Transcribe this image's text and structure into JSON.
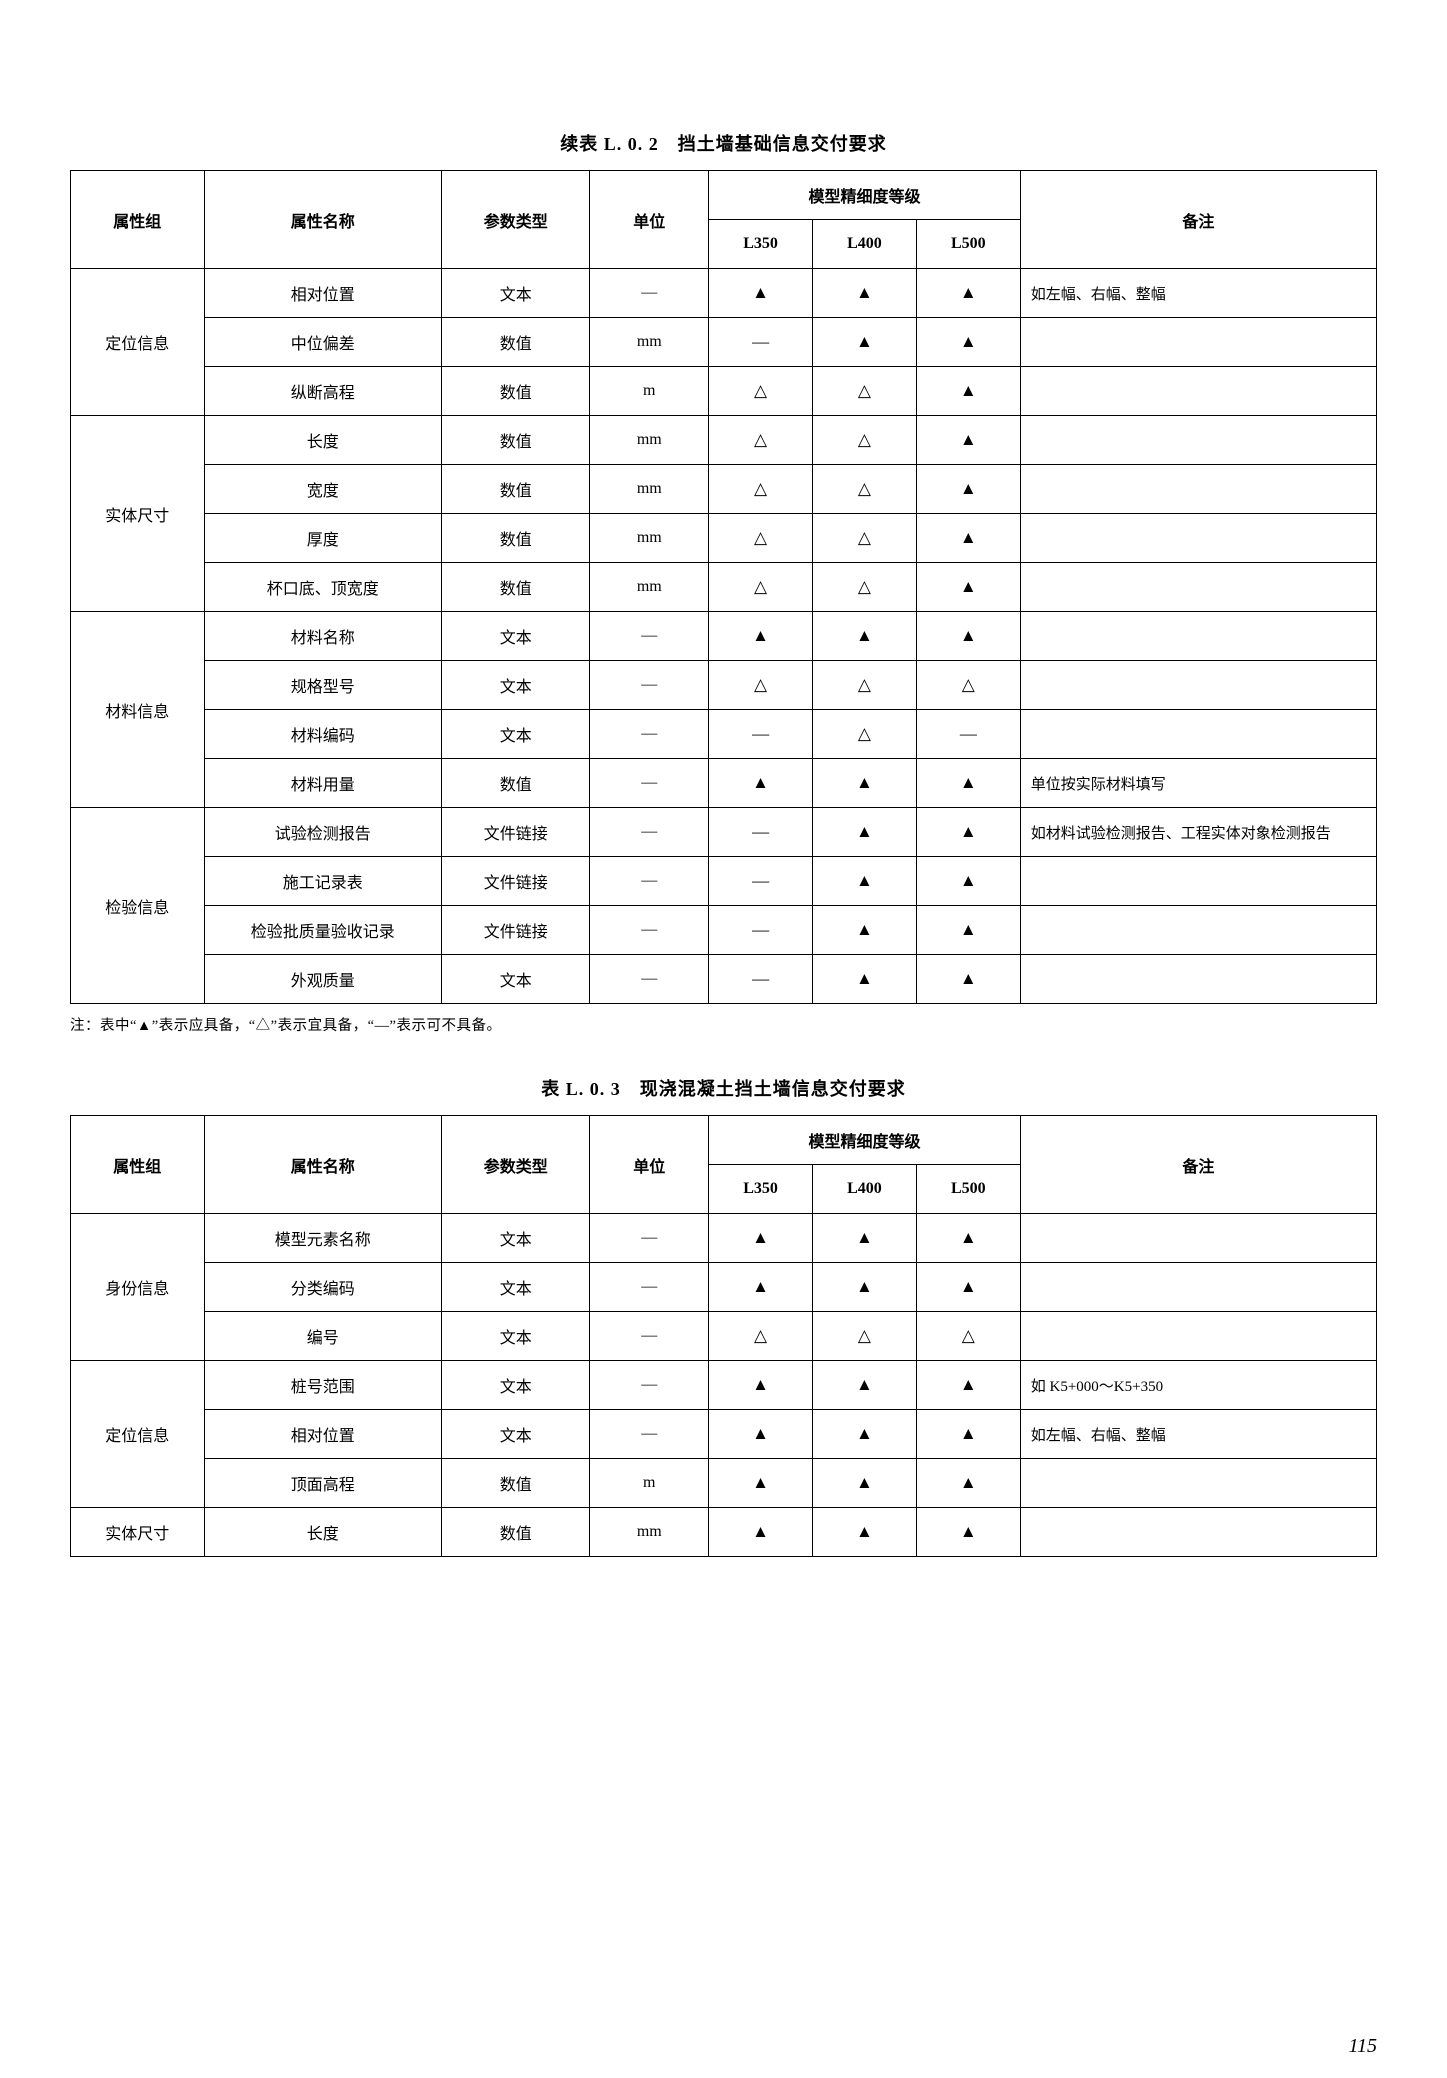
{
  "page_number": "115",
  "symbols": {
    "filled": "▲",
    "hollow": "△",
    "dash": "—"
  },
  "footnote": "注：表中“▲”表示应具备，“△”表示宜具备，“—”表示可不具备。",
  "table1": {
    "title": "续表 L. 0. 2　挡土墙基础信息交付要求",
    "headers": {
      "group": "属性组",
      "attr": "属性名称",
      "type": "参数类型",
      "unit": "单位",
      "level_group": "模型精细度等级",
      "l350": "L350",
      "l400": "L400",
      "l500": "L500",
      "note": "备注"
    },
    "groups": [
      {
        "name": "定位信息",
        "rows": [
          {
            "attr": "相对位置",
            "type": "文本",
            "unit": "—",
            "l350": "▲",
            "l400": "▲",
            "l500": "▲",
            "note": "如左幅、右幅、整幅"
          },
          {
            "attr": "中位偏差",
            "type": "数值",
            "unit": "mm",
            "l350": "—",
            "l400": "▲",
            "l500": "▲",
            "note": ""
          },
          {
            "attr": "纵断高程",
            "type": "数值",
            "unit": "m",
            "l350": "△",
            "l400": "△",
            "l500": "▲",
            "note": ""
          }
        ]
      },
      {
        "name": "实体尺寸",
        "rows": [
          {
            "attr": "长度",
            "type": "数值",
            "unit": "mm",
            "l350": "△",
            "l400": "△",
            "l500": "▲",
            "note": ""
          },
          {
            "attr": "宽度",
            "type": "数值",
            "unit": "mm",
            "l350": "△",
            "l400": "△",
            "l500": "▲",
            "note": ""
          },
          {
            "attr": "厚度",
            "type": "数值",
            "unit": "mm",
            "l350": "△",
            "l400": "△",
            "l500": "▲",
            "note": ""
          },
          {
            "attr": "杯口底、顶宽度",
            "type": "数值",
            "unit": "mm",
            "l350": "△",
            "l400": "△",
            "l500": "▲",
            "note": ""
          }
        ]
      },
      {
        "name": "材料信息",
        "rows": [
          {
            "attr": "材料名称",
            "type": "文本",
            "unit": "—",
            "l350": "▲",
            "l400": "▲",
            "l500": "▲",
            "note": ""
          },
          {
            "attr": "规格型号",
            "type": "文本",
            "unit": "—",
            "l350": "△",
            "l400": "△",
            "l500": "△",
            "note": ""
          },
          {
            "attr": "材料编码",
            "type": "文本",
            "unit": "—",
            "l350": "—",
            "l400": "△",
            "l500": "—",
            "note": ""
          },
          {
            "attr": "材料用量",
            "type": "数值",
            "unit": "—",
            "l350": "▲",
            "l400": "▲",
            "l500": "▲",
            "note": "单位按实际材料填写"
          }
        ]
      },
      {
        "name": "检验信息",
        "rows": [
          {
            "attr": "试验检测报告",
            "type": "文件链接",
            "unit": "—",
            "l350": "—",
            "l400": "▲",
            "l500": "▲",
            "note": "如材料试验检测报告、工程实体对象检测报告"
          },
          {
            "attr": "施工记录表",
            "type": "文件链接",
            "unit": "—",
            "l350": "—",
            "l400": "▲",
            "l500": "▲",
            "note": ""
          },
          {
            "attr": "检验批质量验收记录",
            "type": "文件链接",
            "unit": "—",
            "l350": "—",
            "l400": "▲",
            "l500": "▲",
            "note": ""
          },
          {
            "attr": "外观质量",
            "type": "文本",
            "unit": "—",
            "l350": "—",
            "l400": "▲",
            "l500": "▲",
            "note": ""
          }
        ]
      }
    ]
  },
  "table2": {
    "title": "表 L. 0. 3　现浇混凝土挡土墙信息交付要求",
    "headers": {
      "group": "属性组",
      "attr": "属性名称",
      "type": "参数类型",
      "unit": "单位",
      "level_group": "模型精细度等级",
      "l350": "L350",
      "l400": "L400",
      "l500": "L500",
      "note": "备注"
    },
    "groups": [
      {
        "name": "身份信息",
        "rows": [
          {
            "attr": "模型元素名称",
            "type": "文本",
            "unit": "—",
            "l350": "▲",
            "l400": "▲",
            "l500": "▲",
            "note": ""
          },
          {
            "attr": "分类编码",
            "type": "文本",
            "unit": "—",
            "l350": "▲",
            "l400": "▲",
            "l500": "▲",
            "note": ""
          },
          {
            "attr": "编号",
            "type": "文本",
            "unit": "—",
            "l350": "△",
            "l400": "△",
            "l500": "△",
            "note": ""
          }
        ]
      },
      {
        "name": "定位信息",
        "rows": [
          {
            "attr": "桩号范围",
            "type": "文本",
            "unit": "—",
            "l350": "▲",
            "l400": "▲",
            "l500": "▲",
            "note": "如 K5+000～K5+350"
          },
          {
            "attr": "相对位置",
            "type": "文本",
            "unit": "—",
            "l350": "▲",
            "l400": "▲",
            "l500": "▲",
            "note": "如左幅、右幅、整幅"
          },
          {
            "attr": "顶面高程",
            "type": "数值",
            "unit": "m",
            "l350": "▲",
            "l400": "▲",
            "l500": "▲",
            "note": ""
          }
        ]
      },
      {
        "name": "实体尺寸",
        "rows": [
          {
            "attr": "长度",
            "type": "数值",
            "unit": "mm",
            "l350": "▲",
            "l400": "▲",
            "l500": "▲",
            "note": ""
          }
        ]
      }
    ]
  }
}
